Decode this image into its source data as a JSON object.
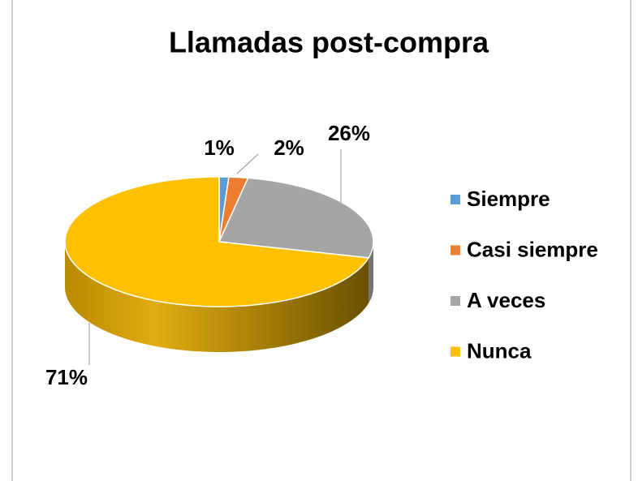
{
  "chart_data": {
    "type": "pie",
    "title": "Llamadas post-compra",
    "categories": [
      "Siempre",
      "Casi siempre",
      "A veces",
      "Nunca"
    ],
    "values": [
      1,
      2,
      26,
      71
    ],
    "value_labels": [
      "1%",
      "2%",
      "26%",
      "71%"
    ],
    "colors": [
      "#5b9bd5",
      "#ed7d31",
      "#a5a5a5",
      "#ffc000"
    ],
    "legend": "right"
  }
}
